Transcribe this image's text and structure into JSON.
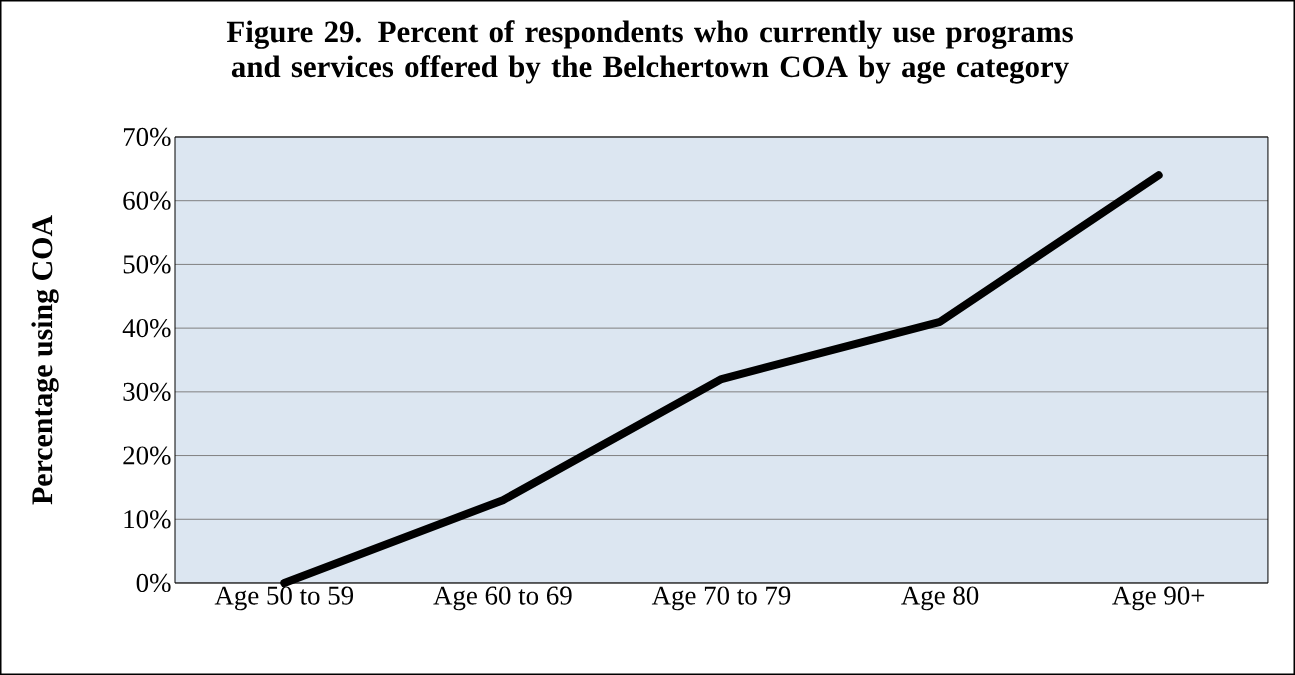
{
  "chart_data": {
    "type": "line",
    "title": "Figure 29. Percent of respondents who currently use programs and services offered by the Belchertown COA by age category",
    "ylabel": "Percentage using COA",
    "categories": [
      "Age 50 to 59",
      "Age 60 to 69",
      "Age 70 to 79",
      "Age 80",
      "Age 90+"
    ],
    "series": [
      {
        "color": "#000000",
        "values": [
          0,
          13,
          32,
          41,
          64
        ]
      }
    ],
    "ylim": [
      0,
      70
    ],
    "yticks": [
      {
        "value": 0,
        "label": "0%"
      },
      {
        "value": 10,
        "label": "10%"
      },
      {
        "value": 20,
        "label": "20%"
      },
      {
        "value": 30,
        "label": "30%"
      },
      {
        "value": 40,
        "label": "40%"
      },
      {
        "value": 50,
        "label": "50%"
      },
      {
        "value": 60,
        "label": "60%"
      },
      {
        "value": 70,
        "label": "70%"
      }
    ],
    "grid": "y",
    "legend": false,
    "marker": "none",
    "line_style": "solid"
  }
}
